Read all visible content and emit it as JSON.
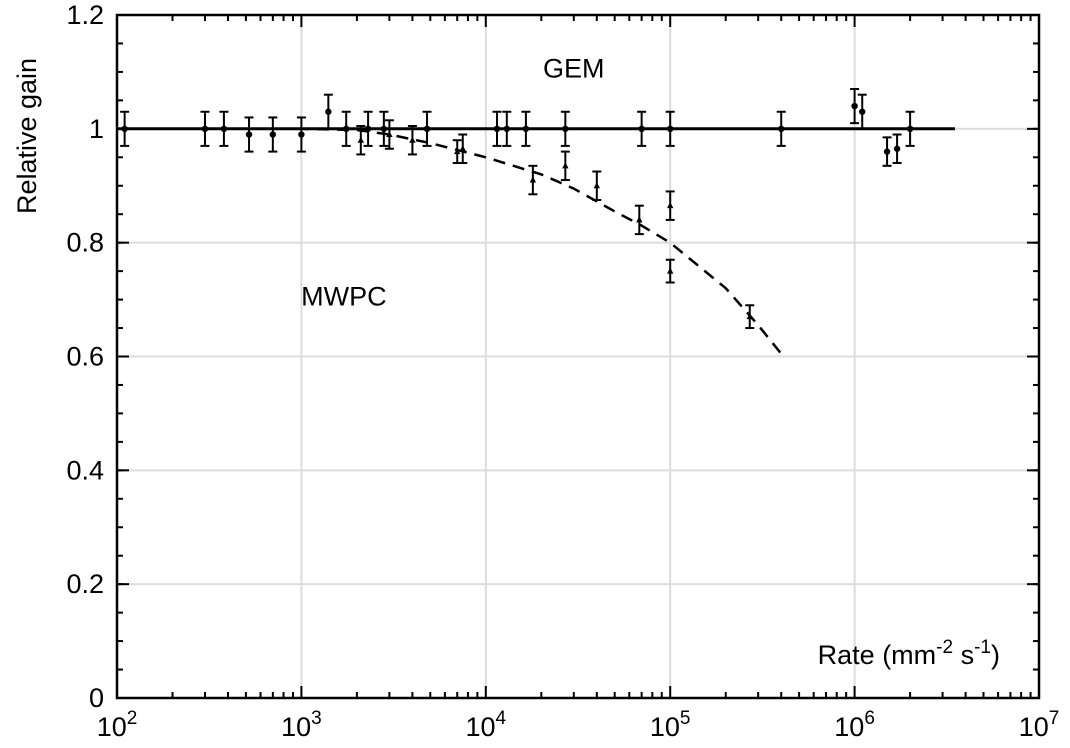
{
  "chart_data": {
    "type": "scatter",
    "title": "",
    "xlabel": "Rate  (mm",
    "xlabel_parts": {
      "main": "Rate  (mm",
      "exp1": "-2",
      "mid": " s",
      "exp2": "-1",
      "end": ")"
    },
    "ylabel": "Relative gain",
    "xscale": "log",
    "xlim": [
      100,
      10000000
    ],
    "ylim": [
      0,
      1.2
    ],
    "grid": true,
    "x_tick_labels": [
      {
        "base": "10",
        "exp": "2"
      },
      {
        "base": "10",
        "exp": "3"
      },
      {
        "base": "10",
        "exp": "4"
      },
      {
        "base": "10",
        "exp": "5"
      },
      {
        "base": "10",
        "exp": "6"
      },
      {
        "base": "10",
        "exp": "7"
      }
    ],
    "x_ticks": [
      100,
      1000,
      10000,
      100000,
      1000000,
      10000000
    ],
    "y_ticks": [
      0,
      0.2,
      0.4,
      0.6,
      0.8,
      1,
      1.2
    ],
    "y_tick_labels": [
      "0",
      "0.2",
      "0.4",
      "0.6",
      "0.8",
      "1",
      "1.2"
    ],
    "annotations": [
      {
        "text": "GEM",
        "x": 30000,
        "y": 1.09
      },
      {
        "text": "MWPC",
        "x": 1700,
        "y": 0.69
      }
    ],
    "series": [
      {
        "marker": "circle",
        "points": [
          {
            "x": 110,
            "y": 1.0,
            "err": 0.03
          },
          {
            "x": 300,
            "y": 1.0,
            "err": 0.03
          },
          {
            "x": 380,
            "y": 1.0,
            "err": 0.03
          },
          {
            "x": 520,
            "y": 0.99,
            "err": 0.03
          },
          {
            "x": 700,
            "y": 0.99,
            "err": 0.03
          },
          {
            "x": 1000,
            "y": 0.99,
            "err": 0.03
          },
          {
            "x": 1400,
            "y": 1.03,
            "err": 0.03
          },
          {
            "x": 1750,
            "y": 1.0,
            "err": 0.03
          },
          {
            "x": 2300,
            "y": 1.0,
            "err": 0.03
          },
          {
            "x": 2800,
            "y": 1.0,
            "err": 0.03
          },
          {
            "x": 4800,
            "y": 1.0,
            "err": 0.03
          },
          {
            "x": 11500,
            "y": 1.0,
            "err": 0.03
          },
          {
            "x": 13000,
            "y": 1.0,
            "err": 0.03
          },
          {
            "x": 16500,
            "y": 1.0,
            "err": 0.03
          },
          {
            "x": 27000,
            "y": 1.0,
            "err": 0.03
          },
          {
            "x": 70000,
            "y": 1.0,
            "err": 0.03
          },
          {
            "x": 100000,
            "y": 1.0,
            "err": 0.03
          },
          {
            "x": 400000,
            "y": 1.0,
            "err": 0.03
          },
          {
            "x": 1000000,
            "y": 1.04,
            "err": 0.03
          },
          {
            "x": 1100000,
            "y": 1.03,
            "err": 0.03
          },
          {
            "x": 1500000,
            "y": 0.96,
            "err": 0.025
          },
          {
            "x": 1700000,
            "y": 0.965,
            "err": 0.025
          },
          {
            "x": 2000000,
            "y": 1.0,
            "err": 0.03
          }
        ]
      },
      {
        "marker": "triangle",
        "points": [
          {
            "x": 2100,
            "y": 0.98,
            "err": 0.025
          },
          {
            "x": 3000,
            "y": 0.99,
            "err": 0.025
          },
          {
            "x": 4000,
            "y": 0.98,
            "err": 0.025
          },
          {
            "x": 7000,
            "y": 0.96,
            "err": 0.02
          },
          {
            "x": 7500,
            "y": 0.965,
            "err": 0.025
          },
          {
            "x": 18000,
            "y": 0.91,
            "err": 0.025
          },
          {
            "x": 27000,
            "y": 0.935,
            "err": 0.025
          },
          {
            "x": 40000,
            "y": 0.9,
            "err": 0.025
          },
          {
            "x": 68000,
            "y": 0.84,
            "err": 0.025
          },
          {
            "x": 100000,
            "y": 0.865,
            "err": 0.025
          },
          {
            "x": 100000,
            "y": 0.75,
            "err": 0.02
          },
          {
            "x": 270000,
            "y": 0.67,
            "err": 0.02
          }
        ]
      }
    ],
    "fits": [
      {
        "style": "solid",
        "points": [
          [
            100,
            1.0
          ],
          [
            3500000,
            1.0
          ]
        ]
      },
      {
        "style": "dashed",
        "points": [
          [
            100,
            1.0
          ],
          [
            1000,
            1.0
          ],
          [
            2000,
            0.998
          ],
          [
            3000,
            0.99
          ],
          [
            5000,
            0.975
          ],
          [
            10000,
            0.95
          ],
          [
            20000,
            0.92
          ],
          [
            30000,
            0.895
          ],
          [
            50000,
            0.855
          ],
          [
            70000,
            0.83
          ],
          [
            100000,
            0.8
          ],
          [
            200000,
            0.72
          ],
          [
            300000,
            0.655
          ],
          [
            400000,
            0.605
          ]
        ]
      }
    ]
  }
}
